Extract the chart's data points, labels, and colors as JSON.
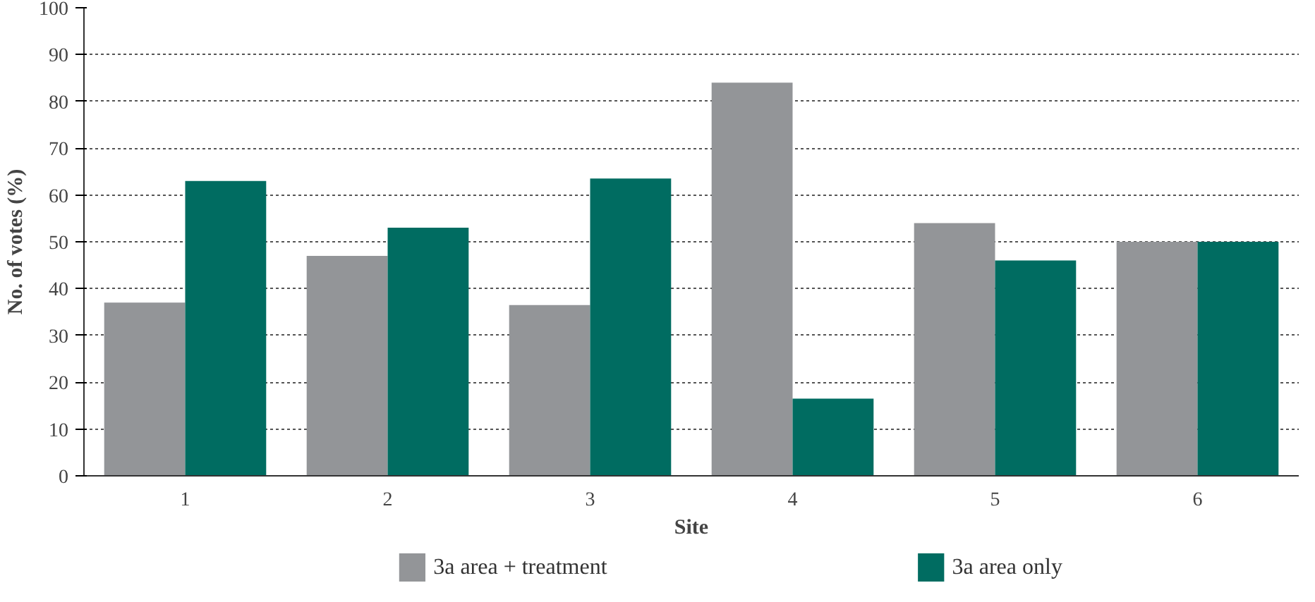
{
  "chart_data": {
    "type": "bar",
    "xlabel": "Site",
    "ylabel": "No. of votes (%)",
    "categories": [
      "1",
      "2",
      "3",
      "4",
      "5",
      "6"
    ],
    "series": [
      {
        "name": "3a area + treatment",
        "color": "#939598",
        "values": [
          37,
          47,
          36.5,
          84,
          54,
          50
        ]
      },
      {
        "name": "3a area only",
        "color": "#006c61",
        "values": [
          63,
          53,
          63.5,
          16.5,
          46,
          50
        ]
      }
    ],
    "ylim": [
      0,
      100
    ],
    "yticks": [
      0,
      10,
      20,
      30,
      40,
      50,
      60,
      70,
      80,
      90,
      100
    ],
    "grid": "y",
    "legend": "bottom"
  }
}
